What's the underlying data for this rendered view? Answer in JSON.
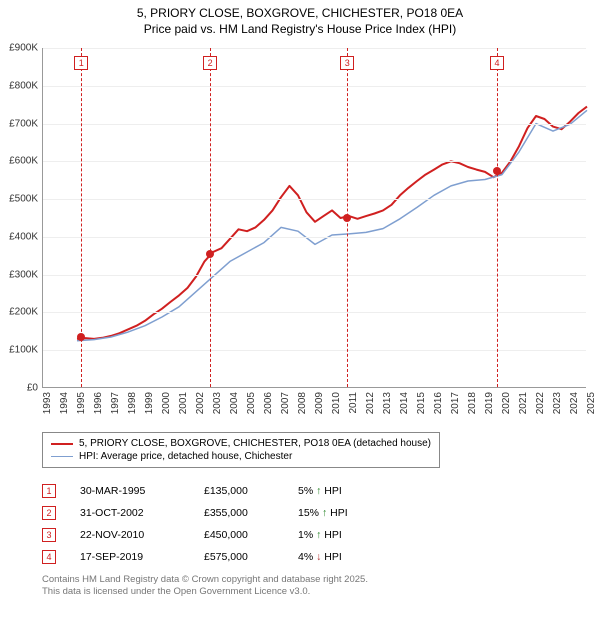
{
  "title": {
    "line1": "5, PRIORY CLOSE, BOXGROVE, CHICHESTER, PO18 0EA",
    "line2": "Price paid vs. HM Land Registry's House Price Index (HPI)"
  },
  "chart": {
    "type": "line",
    "background_color": "#ffffff",
    "grid_color": "#eeeeee",
    "axis_color": "#999999",
    "text_color": "#333333",
    "ylim": [
      0,
      900
    ],
    "ytick_step": 100,
    "y_unit_suffix": "K",
    "y_prefix": "£",
    "xlim": [
      1993,
      2025
    ],
    "xtick_step": 1,
    "label_fontsize": 10,
    "line_width_primary": 2,
    "line_width_secondary": 1.5,
    "series": [
      {
        "name": "property",
        "color": "#d02020",
        "width": 2,
        "points": [
          [
            1995.0,
            130
          ],
          [
            1995.5,
            132
          ],
          [
            1996.0,
            130
          ],
          [
            1996.5,
            133
          ],
          [
            1997.0,
            138
          ],
          [
            1997.5,
            145
          ],
          [
            1998.0,
            155
          ],
          [
            1998.5,
            165
          ],
          [
            1999.0,
            178
          ],
          [
            1999.5,
            195
          ],
          [
            2000.0,
            210
          ],
          [
            2000.5,
            228
          ],
          [
            2001.0,
            245
          ],
          [
            2001.5,
            265
          ],
          [
            2002.0,
            295
          ],
          [
            2002.5,
            335
          ],
          [
            2003.0,
            360
          ],
          [
            2003.5,
            370
          ],
          [
            2004.0,
            395
          ],
          [
            2004.5,
            420
          ],
          [
            2005.0,
            415
          ],
          [
            2005.5,
            425
          ],
          [
            2006.0,
            445
          ],
          [
            2006.5,
            470
          ],
          [
            2007.0,
            505
          ],
          [
            2007.5,
            535
          ],
          [
            2008.0,
            510
          ],
          [
            2008.5,
            465
          ],
          [
            2009.0,
            440
          ],
          [
            2009.5,
            455
          ],
          [
            2010.0,
            470
          ],
          [
            2010.5,
            450
          ],
          [
            2011.0,
            455
          ],
          [
            2011.5,
            448
          ],
          [
            2012.0,
            455
          ],
          [
            2012.5,
            462
          ],
          [
            2013.0,
            470
          ],
          [
            2013.5,
            485
          ],
          [
            2014.0,
            510
          ],
          [
            2014.5,
            530
          ],
          [
            2015.0,
            548
          ],
          [
            2015.5,
            565
          ],
          [
            2016.0,
            578
          ],
          [
            2016.5,
            592
          ],
          [
            2017.0,
            600
          ],
          [
            2017.5,
            595
          ],
          [
            2018.0,
            585
          ],
          [
            2018.5,
            578
          ],
          [
            2019.0,
            572
          ],
          [
            2019.5,
            558
          ],
          [
            2020.0,
            570
          ],
          [
            2020.5,
            600
          ],
          [
            2021.0,
            640
          ],
          [
            2021.5,
            688
          ],
          [
            2022.0,
            720
          ],
          [
            2022.5,
            712
          ],
          [
            2023.0,
            692
          ],
          [
            2023.5,
            685
          ],
          [
            2024.0,
            705
          ],
          [
            2024.5,
            728
          ],
          [
            2025.0,
            745
          ]
        ]
      },
      {
        "name": "hpi",
        "color": "#7f9fd0",
        "width": 1.5,
        "points": [
          [
            1995.0,
            125
          ],
          [
            1996.0,
            128
          ],
          [
            1997.0,
            135
          ],
          [
            1998.0,
            148
          ],
          [
            1999.0,
            165
          ],
          [
            2000.0,
            188
          ],
          [
            2001.0,
            215
          ],
          [
            2002.0,
            255
          ],
          [
            2003.0,
            295
          ],
          [
            2004.0,
            335
          ],
          [
            2005.0,
            360
          ],
          [
            2006.0,
            385
          ],
          [
            2007.0,
            425
          ],
          [
            2008.0,
            415
          ],
          [
            2009.0,
            380
          ],
          [
            2010.0,
            405
          ],
          [
            2011.0,
            408
          ],
          [
            2012.0,
            412
          ],
          [
            2013.0,
            422
          ],
          [
            2014.0,
            448
          ],
          [
            2015.0,
            478
          ],
          [
            2016.0,
            510
          ],
          [
            2017.0,
            535
          ],
          [
            2018.0,
            548
          ],
          [
            2019.0,
            552
          ],
          [
            2020.0,
            565
          ],
          [
            2021.0,
            625
          ],
          [
            2022.0,
            700
          ],
          [
            2023.0,
            680
          ],
          [
            2024.0,
            698
          ],
          [
            2025.0,
            735
          ]
        ]
      }
    ],
    "markers": [
      {
        "id": "1",
        "year": 1995.25,
        "price_k": 135
      },
      {
        "id": "2",
        "year": 2002.83,
        "price_k": 355
      },
      {
        "id": "3",
        "year": 2010.9,
        "price_k": 450
      },
      {
        "id": "4",
        "year": 2019.71,
        "price_k": 575
      }
    ]
  },
  "legend": {
    "items": [
      {
        "color": "#d02020",
        "width": 2,
        "label": "5, PRIORY CLOSE, BOXGROVE, CHICHESTER, PO18 0EA (detached house)"
      },
      {
        "color": "#7f9fd0",
        "width": 1.5,
        "label": "HPI: Average price, detached house, Chichester"
      }
    ]
  },
  "transactions": [
    {
      "id": "1",
      "date": "30-MAR-1995",
      "price": "£135,000",
      "diff": "5% ↑ HPI",
      "arrow_color": "#208020"
    },
    {
      "id": "2",
      "date": "31-OCT-2002",
      "price": "£355,000",
      "diff": "15% ↑ HPI",
      "arrow_color": "#208020"
    },
    {
      "id": "3",
      "date": "22-NOV-2010",
      "price": "£450,000",
      "diff": "1% ↑ HPI",
      "arrow_color": "#208020"
    },
    {
      "id": "4",
      "date": "17-SEP-2019",
      "price": "£575,000",
      "diff": "4% ↓ HPI",
      "arrow_color": "#b03030"
    }
  ],
  "footer": {
    "line1": "Contains HM Land Registry data © Crown copyright and database right 2025.",
    "line2": "This data is licensed under the Open Government Licence v3.0."
  }
}
